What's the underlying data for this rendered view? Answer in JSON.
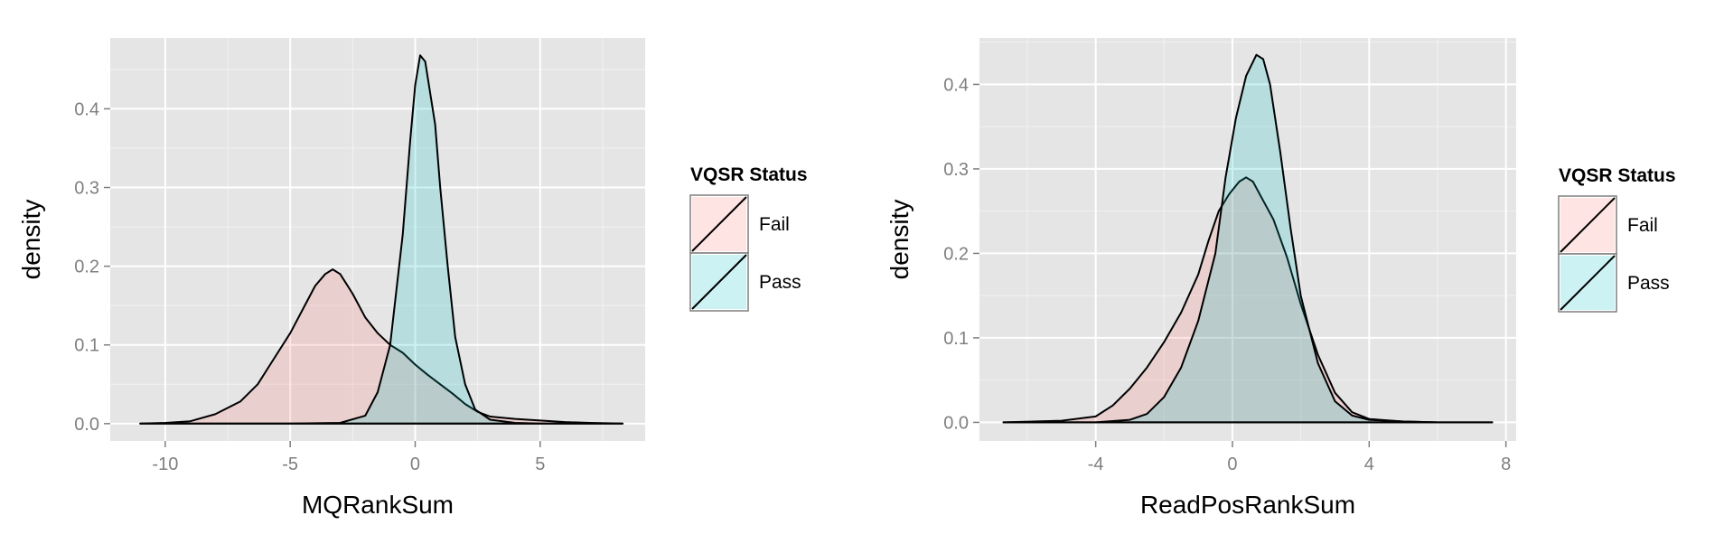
{
  "colors": {
    "panel_bg": "#e5e5e5",
    "grid_major": "#ffffff",
    "grid_minor": "#f2f2f2",
    "tick_text": "#7f7f7f",
    "fail_fill": "#f8766d",
    "pass_fill": "#00bfc4",
    "outline": "#000000"
  },
  "chart_data": [
    {
      "type": "area",
      "xlabel": "MQRankSum",
      "ylabel": "density",
      "xlim": [
        -12.2,
        9.2
      ],
      "ylim": [
        -0.022,
        0.49
      ],
      "x_ticks": [
        -10,
        -5,
        0,
        5
      ],
      "x_tick_labels": [
        "-10",
        "-5",
        "0",
        "5"
      ],
      "y_ticks": [
        0.0,
        0.1,
        0.2,
        0.3,
        0.4
      ],
      "y_tick_labels": [
        "0.0",
        "0.1",
        "0.2",
        "0.3",
        "0.4"
      ],
      "grid": true,
      "fill_alpha": 0.2,
      "legend": {
        "title": "VQSR Status",
        "position": "right",
        "entries": [
          "Fail",
          "Pass"
        ]
      },
      "series": [
        {
          "name": "Fail",
          "color": "#f8766d",
          "points": [
            [
              -11,
              0
            ],
            [
              -10,
              0.001
            ],
            [
              -9,
              0.003
            ],
            [
              -8,
              0.012
            ],
            [
              -7,
              0.028
            ],
            [
              -6.3,
              0.05
            ],
            [
              -5.7,
              0.08
            ],
            [
              -5,
              0.115
            ],
            [
              -4.5,
              0.145
            ],
            [
              -4,
              0.175
            ],
            [
              -3.6,
              0.19
            ],
            [
              -3.3,
              0.196
            ],
            [
              -3,
              0.19
            ],
            [
              -2.5,
              0.165
            ],
            [
              -2,
              0.135
            ],
            [
              -1.5,
              0.115
            ],
            [
              -1,
              0.1
            ],
            [
              -0.5,
              0.09
            ],
            [
              0,
              0.075
            ],
            [
              0.5,
              0.062
            ],
            [
              1,
              0.05
            ],
            [
              1.5,
              0.038
            ],
            [
              2,
              0.025
            ],
            [
              2.5,
              0.015
            ],
            [
              3,
              0.009
            ],
            [
              4,
              0.006
            ],
            [
              5,
              0.004
            ],
            [
              6,
              0.002
            ],
            [
              7,
              0.001
            ],
            [
              8.3,
              0
            ]
          ]
        },
        {
          "name": "Pass",
          "color": "#00bfc4",
          "points": [
            [
              -11,
              0
            ],
            [
              -5,
              0
            ],
            [
              -3,
              0.001
            ],
            [
              -2,
              0.01
            ],
            [
              -1.5,
              0.04
            ],
            [
              -1,
              0.1
            ],
            [
              -0.5,
              0.24
            ],
            [
              -0.2,
              0.36
            ],
            [
              0,
              0.43
            ],
            [
              0.2,
              0.468
            ],
            [
              0.4,
              0.46
            ],
            [
              0.6,
              0.42
            ],
            [
              0.8,
              0.38
            ],
            [
              1,
              0.3
            ],
            [
              1.3,
              0.2
            ],
            [
              1.6,
              0.11
            ],
            [
              2,
              0.05
            ],
            [
              2.4,
              0.018
            ],
            [
              3,
              0.005
            ],
            [
              4,
              0.001
            ],
            [
              5,
              0
            ],
            [
              8.3,
              0
            ]
          ]
        }
      ]
    },
    {
      "type": "area",
      "xlabel": "ReadPosRankSum",
      "ylabel": "density",
      "xlim": [
        -7.4,
        8.3
      ],
      "ylim": [
        -0.022,
        0.455
      ],
      "x_ticks": [
        -4,
        0,
        4,
        8
      ],
      "x_tick_labels": [
        "-4",
        "0",
        "4",
        "8"
      ],
      "y_ticks": [
        0.0,
        0.1,
        0.2,
        0.3,
        0.4
      ],
      "y_tick_labels": [
        "0.0",
        "0.1",
        "0.2",
        "0.3",
        "0.4"
      ],
      "grid": true,
      "fill_alpha": 0.2,
      "legend": {
        "title": "VQSR Status",
        "position": "right",
        "entries": [
          "Fail",
          "Pass"
        ]
      },
      "series": [
        {
          "name": "Fail",
          "color": "#f8766d",
          "points": [
            [
              -6.7,
              0
            ],
            [
              -5,
              0.002
            ],
            [
              -4,
              0.007
            ],
            [
              -3.5,
              0.02
            ],
            [
              -3,
              0.04
            ],
            [
              -2.5,
              0.065
            ],
            [
              -2,
              0.095
            ],
            [
              -1.5,
              0.13
            ],
            [
              -1,
              0.175
            ],
            [
              -0.7,
              0.215
            ],
            [
              -0.4,
              0.25
            ],
            [
              -0.1,
              0.27
            ],
            [
              0.2,
              0.285
            ],
            [
              0.4,
              0.29
            ],
            [
              0.6,
              0.285
            ],
            [
              0.8,
              0.27
            ],
            [
              1.2,
              0.24
            ],
            [
              1.6,
              0.195
            ],
            [
              2,
              0.14
            ],
            [
              2.5,
              0.08
            ],
            [
              3,
              0.035
            ],
            [
              3.5,
              0.012
            ],
            [
              4,
              0.004
            ],
            [
              5,
              0.001
            ],
            [
              6,
              0
            ],
            [
              7.6,
              0
            ]
          ]
        },
        {
          "name": "Pass",
          "color": "#00bfc4",
          "points": [
            [
              -6.7,
              0
            ],
            [
              -4,
              0
            ],
            [
              -3,
              0.003
            ],
            [
              -2.5,
              0.01
            ],
            [
              -2,
              0.03
            ],
            [
              -1.5,
              0.065
            ],
            [
              -1,
              0.12
            ],
            [
              -0.5,
              0.2
            ],
            [
              -0.2,
              0.29
            ],
            [
              0.1,
              0.36
            ],
            [
              0.4,
              0.41
            ],
            [
              0.7,
              0.435
            ],
            [
              0.9,
              0.43
            ],
            [
              1.1,
              0.4
            ],
            [
              1.4,
              0.32
            ],
            [
              1.7,
              0.23
            ],
            [
              2,
              0.15
            ],
            [
              2.5,
              0.07
            ],
            [
              3,
              0.025
            ],
            [
              3.5,
              0.008
            ],
            [
              4,
              0.003
            ],
            [
              5,
              0.001
            ],
            [
              6,
              0
            ],
            [
              7.6,
              0
            ]
          ]
        }
      ]
    }
  ]
}
